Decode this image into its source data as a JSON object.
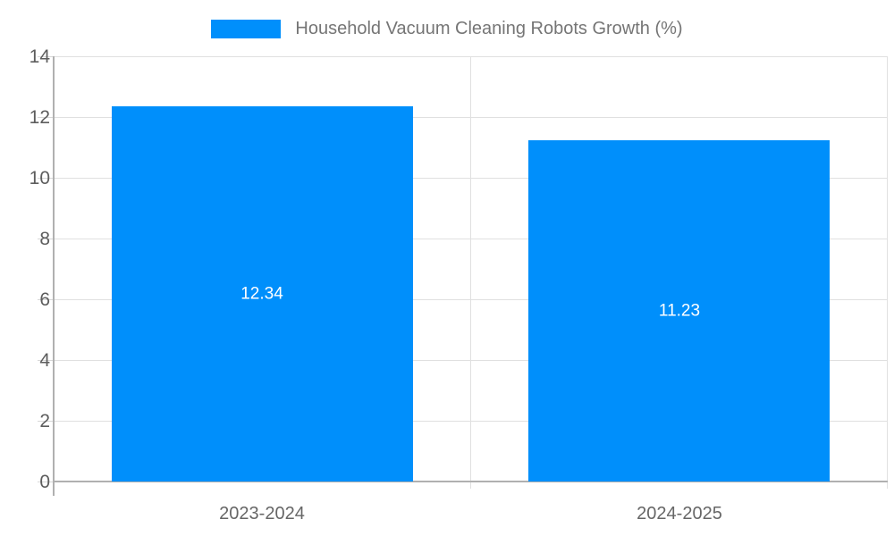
{
  "legend": {
    "label": "Household Vacuum Cleaning Robots Growth (%)",
    "swatch_color": "#008FFB"
  },
  "chart_data": {
    "type": "bar",
    "title": "Household Vacuum Cleaning Robots Growth (%)",
    "categories": [
      "2023-2024",
      "2024-2025"
    ],
    "series": [
      {
        "name": "Household Vacuum Cleaning Robots Growth (%)",
        "values": [
          12.34,
          11.23
        ],
        "color": "#008FFB"
      }
    ],
    "data_labels": [
      "12.34",
      "11.23"
    ],
    "xlabel": "",
    "ylabel": "",
    "ylim": [
      0,
      14
    ],
    "yticks": [
      0,
      2,
      4,
      6,
      8,
      10,
      12,
      14
    ],
    "grid": true,
    "legend_position": "top"
  },
  "colors": {
    "bar": "#008FFB",
    "gridline": "#e0e0e0",
    "axis_line": "#b0b0b0",
    "tick": "#d7d7d7",
    "y_label": "#5d5d5d",
    "x_label": "#666666",
    "legend_text": "#757575",
    "data_label": "#ffffff",
    "background": "#ffffff"
  }
}
